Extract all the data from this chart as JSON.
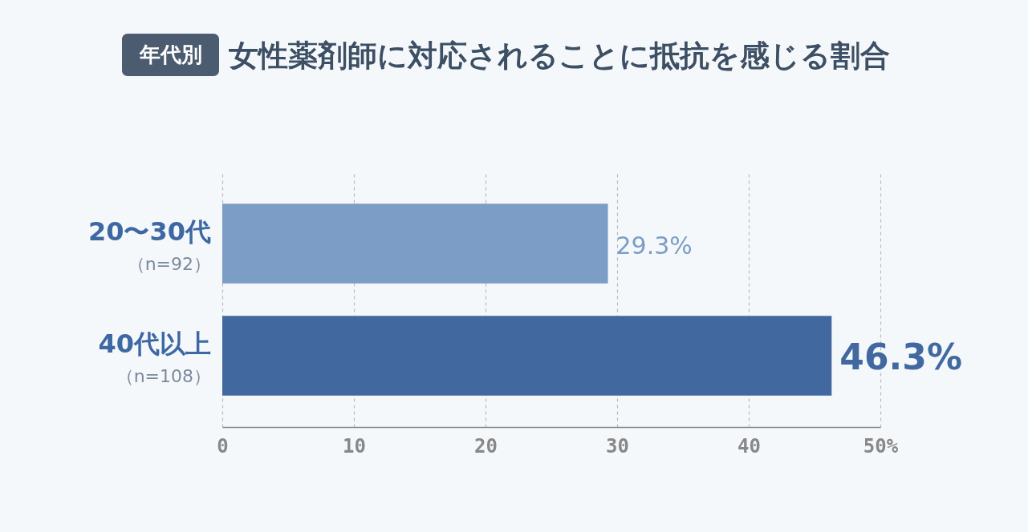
{
  "chart_data": {
    "type": "bar",
    "orientation": "horizontal",
    "title": "女性薬剤師に対応されることに抵抗を感じる割合",
    "annotations": [
      "年代別",
      "（n=92）",
      "（n=108）"
    ],
    "categories": [
      "20〜30代",
      "40代以上"
    ],
    "values": [
      29.3,
      46.3
    ],
    "colors": [
      "#7b9dc6",
      "#42699f"
    ],
    "value_labels": [
      "29.3%",
      "46.3%"
    ],
    "xlim": [
      0,
      50
    ],
    "xticks": [
      0,
      10,
      20,
      30,
      40,
      {
        "value": 50,
        "label": "50%"
      }
    ],
    "grid": "x"
  }
}
